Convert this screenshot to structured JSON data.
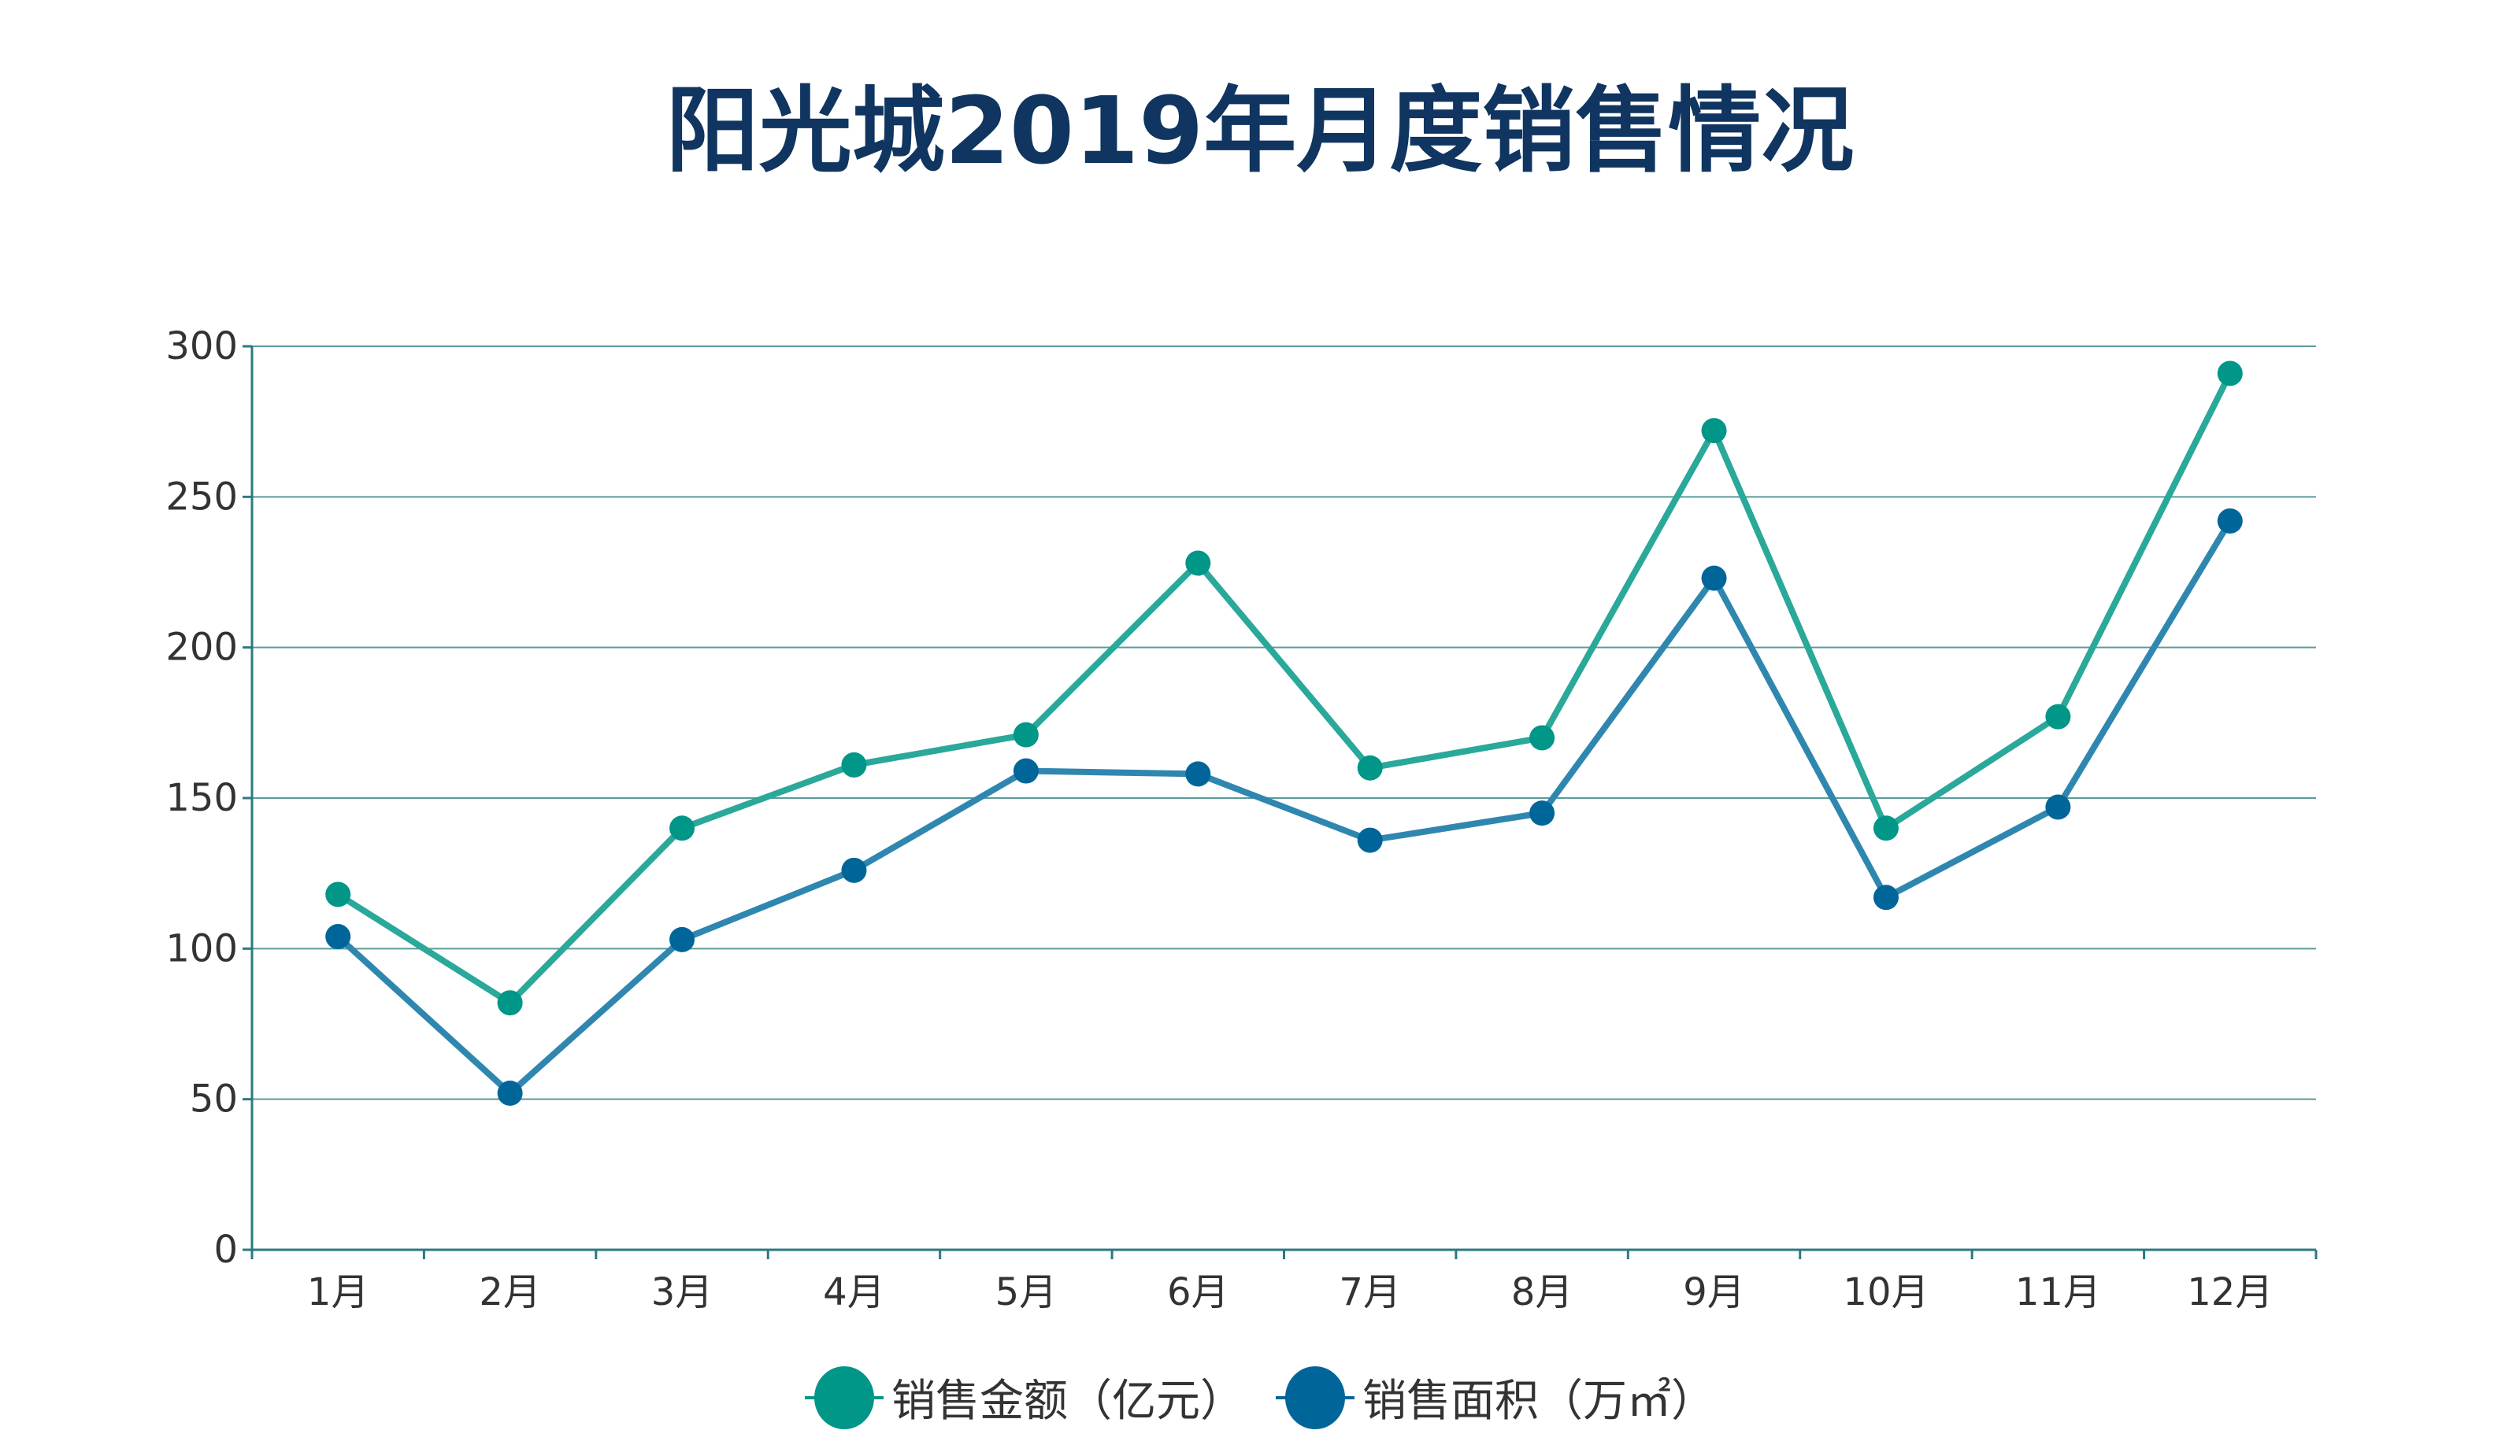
{
  "chart_data": {
    "type": "line",
    "title": "阳光城2019年月度销售情况",
    "categories": [
      "1月",
      "2月",
      "3月",
      "4月",
      "5月",
      "6月",
      "7月",
      "8月",
      "9月",
      "10月",
      "11月",
      "12月"
    ],
    "series": [
      {
        "name": "销售金额（亿元）",
        "color": "#009688",
        "line_color": "#2aa89a",
        "values": [
          118,
          82,
          140,
          161,
          171,
          228,
          160,
          170,
          272,
          140,
          177,
          291
        ]
      },
      {
        "name": "销售面积（万㎡）",
        "color": "#006699",
        "line_color": "#2f87b0",
        "values": [
          104,
          52,
          103,
          126,
          159,
          158,
          136,
          145,
          223,
          117,
          147,
          242
        ]
      }
    ],
    "yticks": [
      "0",
      "50",
      "100",
      "150",
      "200",
      "250",
      "300"
    ],
    "ylim": [
      0,
      300
    ],
    "grid": true,
    "legend": "bottom-center",
    "xlabel": "",
    "ylabel": ""
  }
}
